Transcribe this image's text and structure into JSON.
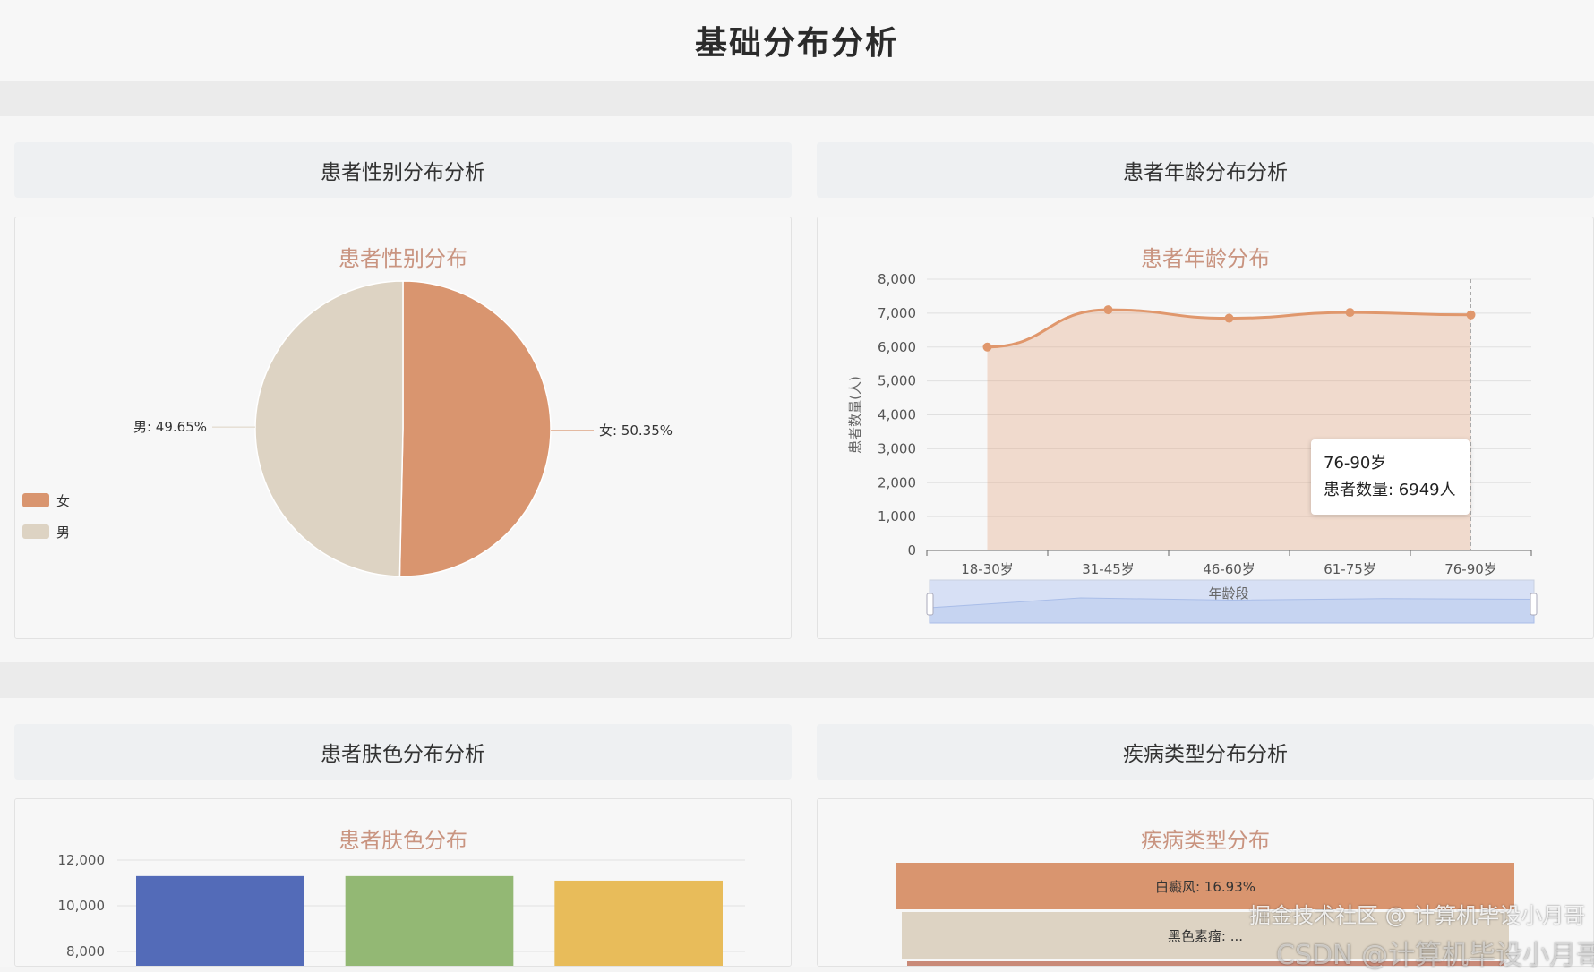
{
  "page_title": "基础分布分析",
  "sections": [
    {
      "header": "患者性别分布分析"
    },
    {
      "header": "患者年龄分布分析"
    },
    {
      "header": "患者肤色分布分析"
    },
    {
      "header": "疾病类型分布分析"
    }
  ],
  "tooltip": {
    "title": "76-90岁",
    "line": "患者数量: 6949人"
  },
  "watermark": {
    "line1": "掘金技术社区 @ 计算机毕设小月哥",
    "line2": "CSDN @计算机毕设小月哥"
  },
  "chart_data": [
    {
      "type": "pie",
      "title": "患者性别分布",
      "slices": [
        {
          "name": "女",
          "value": 50.35,
          "label": "女: 50.35%",
          "color": "#d9956f"
        },
        {
          "name": "男",
          "value": 49.65,
          "label": "男: 49.65%",
          "color": "#ddd3c3"
        }
      ],
      "legend": [
        "女",
        "男"
      ],
      "legend_position": "bottom-left"
    },
    {
      "type": "area",
      "title": "患者年龄分布",
      "categories": [
        "18-30岁",
        "31-45岁",
        "46-60岁",
        "61-75岁",
        "76-90岁"
      ],
      "values": [
        6000,
        7100,
        6850,
        7020,
        6949
      ],
      "ylabel": "患者数量(人)",
      "xlabel": "年龄段",
      "ylim": [
        0,
        8000
      ],
      "yticks": [
        "0",
        "1,000",
        "2,000",
        "3,000",
        "4,000",
        "5,000",
        "6,000",
        "7,000",
        "8,000"
      ],
      "color": "#e0976c",
      "grid": true,
      "data_zoom": true
    },
    {
      "type": "bar",
      "title": "患者肤色分布",
      "values": [
        11300,
        11300,
        11100
      ],
      "colors": [
        "#536bb8",
        "#93b874",
        "#e8bc5a"
      ],
      "yticks": [
        "8,000",
        "10,000",
        "12,000"
      ],
      "grid": true
    },
    {
      "type": "funnel",
      "title": "疾病类型分布",
      "items": [
        {
          "label": "白癜风: 16.93%",
          "color": "#d9956f"
        },
        {
          "label": "黑色素瘤: ...",
          "color": "#ddd3c3"
        }
      ]
    }
  ]
}
